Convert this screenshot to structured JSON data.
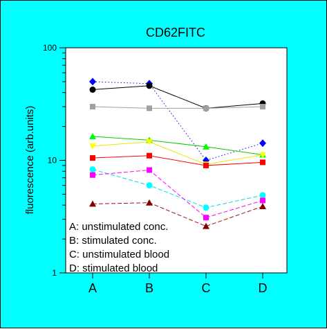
{
  "chart_data": {
    "type": "line",
    "title": "CD62FITC",
    "xlabel": "",
    "ylabel": "fluorescence (arb.units)",
    "yscale": "log",
    "ylim": [
      1,
      100
    ],
    "yticks": [
      "1",
      "10",
      "100"
    ],
    "categories": [
      "A",
      "B",
      "C",
      "D"
    ],
    "grid": false,
    "background": "#00ffff",
    "plot_background": "#ffffff",
    "series": [
      {
        "values": [
          50,
          48,
          10,
          14.2
        ],
        "color": "#0000ff",
        "marker": "diamond",
        "dash": "dotted",
        "line_color": "#0000ff"
      },
      {
        "values": [
          42.5,
          46,
          29,
          32
        ],
        "color": "#000000",
        "marker": "circle",
        "dash": "solid",
        "line_color": "#000000"
      },
      {
        "values": [
          30,
          29,
          29,
          30
        ],
        "color": "#a0a0a0",
        "marker": "square",
        "dash": "solid",
        "line_color": "#a0a0a0"
      },
      {
        "values": [
          16.3,
          15.1,
          13.2,
          11.2
        ],
        "color": "#00ff00",
        "marker": "triangle-up",
        "dash": "solid",
        "line_color": "#00cc00"
      },
      {
        "values": [
          13.4,
          14.6,
          9.2,
          11.2
        ],
        "color": "#ffff00",
        "marker": "triangle-down",
        "dash": "solid",
        "line_color": "#e8e800"
      },
      {
        "values": [
          10.5,
          11.0,
          9.0,
          9.6
        ],
        "color": "#ff0000",
        "marker": "square",
        "dash": "solid",
        "line_color": "#ff0000"
      },
      {
        "values": [
          8.3,
          6.0,
          3.8,
          4.9
        ],
        "color": "#00ffff",
        "marker": "circle",
        "dash": "dashed",
        "line_color": "#00dddd"
      },
      {
        "values": [
          7.4,
          8.2,
          3.1,
          4.4
        ],
        "color": "#ff00ff",
        "marker": "square",
        "dash": "dashed",
        "line_color": "#ff00ff"
      },
      {
        "values": [
          4.1,
          4.2,
          2.6,
          3.9
        ],
        "color": "#800000",
        "marker": "triangle-up",
        "dash": "dashed",
        "line_color": "#a01010"
      }
    ],
    "annotations": [
      "A: unstimulated conc.",
      "B: stimulated conc.",
      "C: unstimulated blood",
      "D: stimulated blood"
    ]
  }
}
